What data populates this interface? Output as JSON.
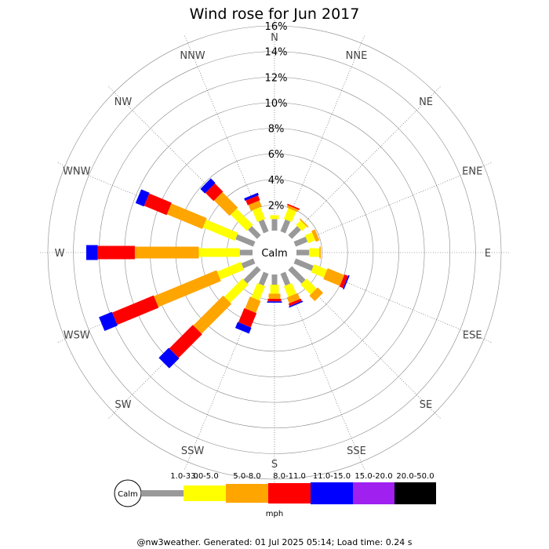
{
  "chart_data": {
    "type": "wind-rose",
    "title": "Wind rose for Jun 2017",
    "center_label": "Calm",
    "unit": "mph",
    "footer": "@nw3weather. Generated: 01 Jul 2025 05:14; Load time: 0.24 s",
    "directions": [
      "N",
      "NNE",
      "NE",
      "ENE",
      "E",
      "ESE",
      "SE",
      "SSE",
      "S",
      "SSW",
      "SW",
      "WSW",
      "W",
      "WNW",
      "NW",
      "NNW"
    ],
    "radial_ticks": [
      "2%",
      "4%",
      "6%",
      "8%",
      "10%",
      "12%",
      "14%",
      "16%"
    ],
    "radial_max": 16,
    "speed_bins": [
      {
        "label": "1.0-3.0",
        "color": "#999999"
      },
      {
        "label": "3.0-5.0",
        "color": "#ffff00"
      },
      {
        "label": "5.0-8.0",
        "color": "#ffa500"
      },
      {
        "label": "8.0-11.0",
        "color": "#ff0000"
      },
      {
        "label": "11.0-15.0",
        "color": "#0000ff"
      },
      {
        "label": "15.0-20.0",
        "color": "#a020f0"
      },
      {
        "label": "20.0-50.0",
        "color": "#000000"
      }
    ],
    "series": [
      {
        "direction": "N",
        "values": [
          0.9,
          0.3,
          0.0,
          0.0,
          0.0,
          0.0,
          0.0
        ]
      },
      {
        "direction": "NNE",
        "values": [
          1.0,
          0.9,
          0.2,
          0.1,
          0.0,
          0.0,
          0.0
        ]
      },
      {
        "direction": "NE",
        "values": [
          1.0,
          0.5,
          0.1,
          0.0,
          0.0,
          0.0,
          0.0
        ]
      },
      {
        "direction": "ENE",
        "values": [
          1.0,
          0.6,
          0.3,
          0.0,
          0.0,
          0.0,
          0.0
        ]
      },
      {
        "direction": "E",
        "values": [
          1.0,
          0.8,
          0.1,
          0.0,
          0.0,
          0.0,
          0.0
        ]
      },
      {
        "direction": "ESE",
        "values": [
          1.5,
          1.1,
          1.4,
          0.3,
          0.1,
          0.0,
          0.0
        ]
      },
      {
        "direction": "SE",
        "values": [
          1.5,
          1.1,
          0.6,
          0.0,
          0.0,
          0.0,
          0.0
        ]
      },
      {
        "direction": "SSE",
        "values": [
          1.0,
          0.9,
          0.5,
          0.2,
          0.1,
          0.0,
          0.0
        ]
      },
      {
        "direction": "S",
        "values": [
          0.8,
          0.7,
          0.4,
          0.2,
          0.1,
          0.0,
          0.0
        ]
      },
      {
        "direction": "SSW",
        "values": [
          1.0,
          1.2,
          1.0,
          1.2,
          0.5,
          0.0,
          0.0
        ]
      },
      {
        "direction": "SW",
        "values": [
          1.5,
          2.0,
          3.3,
          2.6,
          1.1,
          0.0,
          0.0
        ]
      },
      {
        "direction": "WSW",
        "values": [
          1.0,
          2.0,
          5.3,
          3.5,
          1.1,
          0.0,
          0.0
        ]
      },
      {
        "direction": "W",
        "values": [
          1.0,
          3.2,
          5.0,
          2.9,
          0.9,
          0.0,
          0.0
        ]
      },
      {
        "direction": "WNW",
        "values": [
          1.5,
          2.7,
          3.0,
          1.9,
          0.7,
          0.0,
          0.0
        ]
      },
      {
        "direction": "NW",
        "values": [
          1.0,
          1.8,
          1.7,
          0.9,
          0.5,
          0.0,
          0.0
        ]
      },
      {
        "direction": "NNW",
        "values": [
          1.0,
          1.0,
          0.5,
          0.4,
          0.2,
          0.0,
          0.0
        ]
      }
    ]
  }
}
